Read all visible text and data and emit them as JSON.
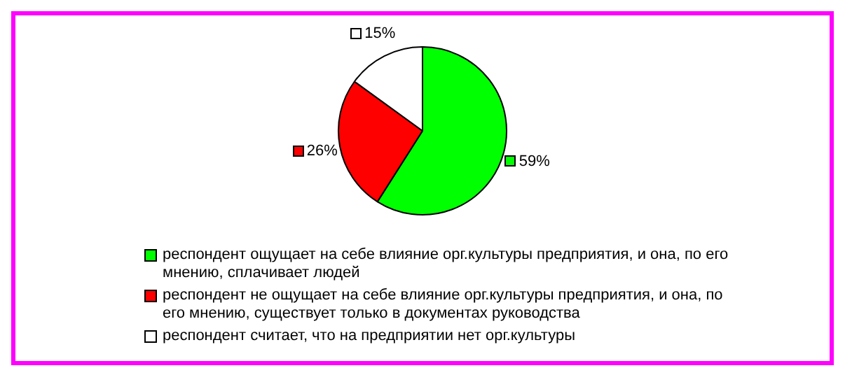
{
  "chart_data": {
    "type": "pie",
    "categories": [
      "респондент ощущает на себе влияние орг.культуры предприятия, и она, по его мнению, сплачивает людей",
      "респондент не ощущает на себе влияние орг.культуры предприятия, и она, по его мнению, существует только в документах руководства",
      "респондент считает, что на предприятии нет орг.культуры"
    ],
    "values": [
      59,
      26,
      15
    ],
    "colors": [
      "#00ff00",
      "#ff0000",
      "#ffffff"
    ],
    "value_labels": [
      "59%",
      "26%",
      "15%"
    ],
    "legend": "bottom"
  }
}
